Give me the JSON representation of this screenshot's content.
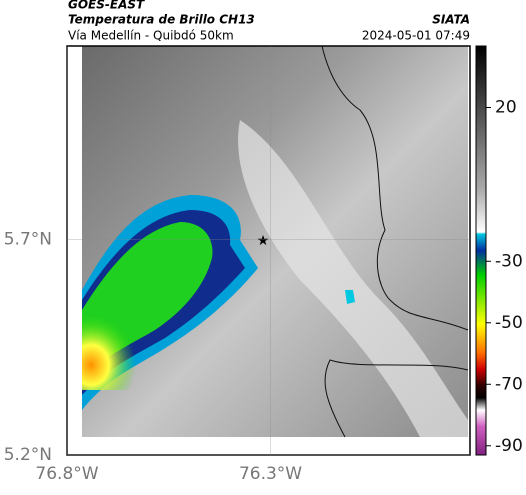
{
  "header": {
    "title": "GOES-EAST",
    "subtitle": "Temperatura de Brillo CH13",
    "location": "Vía Medellín - Quibdó 50km",
    "source": "SIATA",
    "timestamp": "2024-05-01 07:49"
  },
  "map": {
    "xlim": [
      -76.8,
      -75.81
    ],
    "ylim": [
      5.2,
      6.15
    ],
    "xticks": [
      {
        "value": -76.8,
        "label": "76.8°W"
      },
      {
        "value": -76.3,
        "label": "76.3°W"
      }
    ],
    "yticks": [
      {
        "value": 5.2,
        "label": "5.2°N"
      },
      {
        "value": 5.7,
        "label": "5.7°N"
      }
    ]
  },
  "colorbar": {
    "lim": [
      -93,
      40
    ],
    "ticks": [
      20,
      -30,
      -50,
      -70,
      -90
    ]
  }
}
